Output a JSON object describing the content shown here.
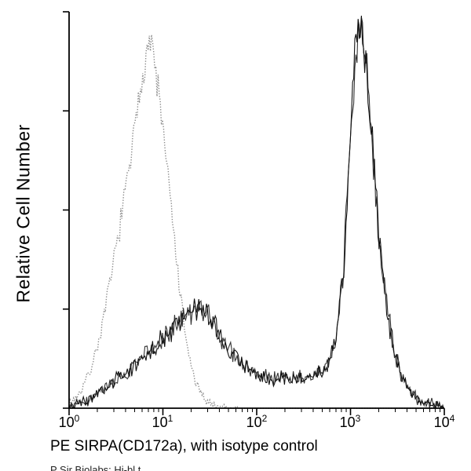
{
  "figure": {
    "background": "#ffffff",
    "caption_clipped": "P Sir Biolabs: Hi-bl t"
  },
  "chart_data": {
    "type": "line",
    "title": "",
    "xlabel": "PE SIRPA(CD172a), with isotype control",
    "ylabel": "Relative Cell Number",
    "x_scale": "log",
    "x_range": [
      1,
      10000
    ],
    "y_range": [
      0,
      100
    ],
    "grid": false,
    "legend": "none",
    "axis_color": "#000000",
    "x_ticks": [
      {
        "base": "10",
        "exp": "0"
      },
      {
        "base": "10",
        "exp": "1"
      },
      {
        "base": "10",
        "exp": "2"
      },
      {
        "base": "10",
        "exp": "3"
      },
      {
        "base": "10",
        "exp": "4"
      }
    ],
    "y_axis": {
      "tick_count": 5,
      "labels_visible": false
    },
    "series": [
      {
        "name": "isotype control",
        "style": "dotted",
        "color": "#8c8c8c",
        "points": [
          [
            1,
            1
          ],
          [
            1.3,
            4
          ],
          [
            1.7,
            10
          ],
          [
            2.2,
            20
          ],
          [
            2.8,
            34
          ],
          [
            3.5,
            48
          ],
          [
            4.5,
            64
          ],
          [
            5.5,
            79
          ],
          [
            6.2,
            89
          ],
          [
            7,
            96
          ],
          [
            7.8,
            93
          ],
          [
            9,
            82
          ],
          [
            10.5,
            68
          ],
          [
            12.5,
            50
          ],
          [
            15,
            31
          ],
          [
            18,
            16
          ],
          [
            22,
            7
          ],
          [
            27,
            2.5
          ],
          [
            35,
            0.8
          ],
          [
            50,
            0.2
          ],
          [
            70,
            0
          ]
        ]
      },
      {
        "name": "PE SIRPA(CD172a)",
        "style": "solid-noisy",
        "color": "#111111",
        "points": [
          [
            1,
            0.4
          ],
          [
            1.6,
            2
          ],
          [
            2.5,
            5
          ],
          [
            4,
            9
          ],
          [
            6,
            13
          ],
          [
            9,
            17
          ],
          [
            13,
            21
          ],
          [
            18,
            24
          ],
          [
            24,
            26
          ],
          [
            30,
            24
          ],
          [
            40,
            19
          ],
          [
            55,
            14
          ],
          [
            75,
            11
          ],
          [
            100,
            9
          ],
          [
            140,
            8
          ],
          [
            200,
            7.5
          ],
          [
            300,
            8
          ],
          [
            420,
            8.5
          ],
          [
            550,
            10
          ],
          [
            700,
            18
          ],
          [
            850,
            38
          ],
          [
            1000,
            70
          ],
          [
            1150,
            96
          ],
          [
            1280,
            100
          ],
          [
            1450,
            91
          ],
          [
            1700,
            69
          ],
          [
            2000,
            45
          ],
          [
            2400,
            27
          ],
          [
            3000,
            13
          ],
          [
            4000,
            5.5
          ],
          [
            5500,
            2
          ],
          [
            8000,
            0.6
          ],
          [
            10000,
            0.2
          ]
        ]
      }
    ]
  }
}
